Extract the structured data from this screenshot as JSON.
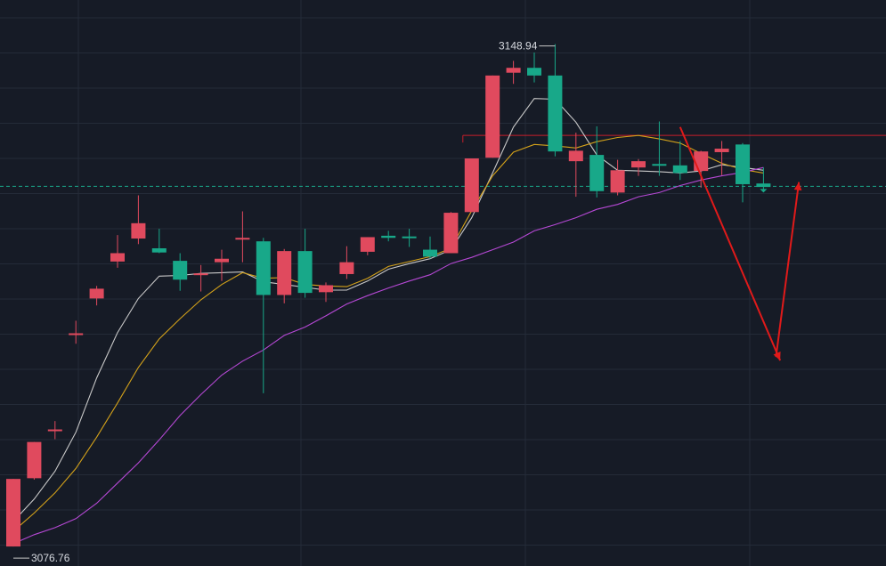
{
  "chart_data": {
    "type": "candlestick",
    "y_axis": {
      "scale": "linear",
      "range_note": "price",
      "gridlines": true
    },
    "x_axis": {
      "gridlines": true
    },
    "annotations": {
      "high_label": "3148.94",
      "low_label": "3076.76"
    },
    "candles": [
      {
        "open": 3086.5,
        "close": 3076.8,
        "high": 3086.5,
        "low": 3076.8,
        "color": "red"
      },
      {
        "open": 3091.8,
        "close": 3086.6,
        "high": 3091.8,
        "low": 3086.4,
        "color": "red"
      },
      {
        "open": 3093.5,
        "close": 3093.6,
        "high": 3094.8,
        "low": 3092.2,
        "color": "red"
      },
      {
        "open": 3107.4,
        "close": 3107.3,
        "high": 3109.2,
        "low": 3105.9,
        "color": "red"
      },
      {
        "open": 3113.8,
        "close": 3112.4,
        "high": 3114.2,
        "low": 3111.4,
        "color": "red"
      },
      {
        "open": 3118.9,
        "close": 3117.7,
        "high": 3121.5,
        "low": 3116.8,
        "color": "red"
      },
      {
        "open": 3123.2,
        "close": 3121.0,
        "high": 3127.2,
        "low": 3120.2,
        "color": "red"
      },
      {
        "open": 3119.6,
        "close": 3119.0,
        "high": 3122.4,
        "low": 3118.9,
        "color": "green"
      },
      {
        "open": 3117.8,
        "close": 3115.1,
        "high": 3118.9,
        "low": 3113.5,
        "color": "green"
      },
      {
        "open": 3115.8,
        "close": 3116.0,
        "high": 3117.2,
        "low": 3113.4,
        "color": "red"
      },
      {
        "open": 3118.1,
        "close": 3117.6,
        "high": 3119.4,
        "low": 3114.9,
        "color": "red"
      },
      {
        "open": 3121.1,
        "close": 3121.0,
        "high": 3124.9,
        "low": 3117.6,
        "color": "red"
      },
      {
        "open": 3120.6,
        "close": 3112.9,
        "high": 3121.1,
        "low": 3098.8,
        "color": "green"
      },
      {
        "open": 3119.2,
        "close": 3112.9,
        "high": 3119.5,
        "low": 3111.7,
        "color": "red"
      },
      {
        "open": 3119.2,
        "close": 3113.2,
        "high": 3122.4,
        "low": 3112.5,
        "color": "green"
      },
      {
        "open": 3114.3,
        "close": 3113.3,
        "high": 3114.7,
        "low": 3111.9,
        "color": "red"
      },
      {
        "open": 3117.6,
        "close": 3115.9,
        "high": 3119.9,
        "low": 3115.2,
        "color": "red"
      },
      {
        "open": 3121.2,
        "close": 3119.1,
        "high": 3121.2,
        "low": 3118.6,
        "color": "red"
      },
      {
        "open": 3121.4,
        "close": 3121.1,
        "high": 3122.1,
        "low": 3120.6,
        "color": "green"
      },
      {
        "open": 3121.3,
        "close": 3121.1,
        "high": 3122.4,
        "low": 3119.8,
        "color": "green"
      },
      {
        "open": 3119.4,
        "close": 3118.4,
        "high": 3121.3,
        "low": 3118.1,
        "color": "green"
      },
      {
        "open": 3124.7,
        "close": 3118.9,
        "high": 3124.8,
        "low": 3118.9,
        "color": "red"
      },
      {
        "open": 3132.5,
        "close": 3124.8,
        "high": 3132.5,
        "low": 3124.8,
        "color": "red"
      },
      {
        "open": 3144.4,
        "close": 3132.6,
        "high": 3144.4,
        "low": 3132.6,
        "color": "red"
      },
      {
        "open": 3145.5,
        "close": 3144.8,
        "high": 3146.5,
        "low": 3143.2,
        "color": "red"
      },
      {
        "open": 3145.5,
        "close": 3144.4,
        "high": 3147.7,
        "low": 3143.4,
        "color": "green"
      },
      {
        "open": 3144.4,
        "close": 3133.5,
        "high": 3148.9,
        "low": 3132.8,
        "color": "green"
      },
      {
        "open": 3133.6,
        "close": 3132.1,
        "high": 3136.2,
        "low": 3127.0,
        "color": "red"
      },
      {
        "open": 3133.0,
        "close": 3127.8,
        "high": 3137.1,
        "low": 3126.9,
        "color": "green"
      },
      {
        "open": 3130.8,
        "close": 3127.6,
        "high": 3132.3,
        "low": 3127.2,
        "color": "red"
      },
      {
        "open": 3132.1,
        "close": 3131.2,
        "high": 3132.4,
        "low": 3130.0,
        "color": "red"
      },
      {
        "open": 3131.7,
        "close": 3131.6,
        "high": 3137.8,
        "low": 3130.0,
        "color": "green"
      },
      {
        "open": 3131.5,
        "close": 3130.4,
        "high": 3135.0,
        "low": 3129.4,
        "color": "green"
      },
      {
        "open": 3130.7,
        "close": 3133.5,
        "high": 3133.6,
        "low": 3128.3,
        "color": "red"
      },
      {
        "open": 3133.9,
        "close": 3133.4,
        "high": 3135.0,
        "low": 3130.1,
        "color": "red"
      },
      {
        "open": 3134.5,
        "close": 3128.8,
        "high": 3134.7,
        "low": 3126.2,
        "color": "green"
      },
      {
        "open": 3128.9,
        "close": 3128.4,
        "high": 3131.2,
        "low": 3127.7,
        "color": "green"
      }
    ],
    "moving_averages": [
      {
        "name": "",
        "color": "#c9c9c9",
        "values": [
          3080.4,
          3083.6,
          3087.6,
          3093.2,
          3101.0,
          3107.5,
          3112.4,
          3115.6,
          3115.7,
          3116.0,
          3116.1,
          3116.2,
          3114.8,
          3114.4,
          3114.0,
          3113.6,
          3113.6,
          3114.9,
          3116.6,
          3117.4,
          3118.1,
          3119.4,
          3124.0,
          3130.4,
          3137.0,
          3141.1,
          3141.0,
          3137.7,
          3133.0,
          3130.8,
          3130.7,
          3130.6,
          3130.4,
          3130.7,
          3131.6,
          3131.2,
          3130.8
        ]
      },
      {
        "name": "",
        "color": "#d4a21a",
        "values": [
          3079.0,
          3081.6,
          3084.5,
          3088.0,
          3092.5,
          3097.4,
          3102.5,
          3106.6,
          3109.5,
          3112.2,
          3114.4,
          3116.1,
          3115.3,
          3115.4,
          3114.4,
          3114.2,
          3114.1,
          3115.3,
          3117.0,
          3117.7,
          3118.4,
          3119.6,
          3125.0,
          3130.0,
          3133.4,
          3134.5,
          3134.3,
          3134.0,
          3134.9,
          3135.5,
          3135.8,
          3135.3,
          3134.7,
          3133.2,
          3131.8,
          3130.9,
          3130.4
        ]
      },
      {
        "name": "",
        "color": "#b548d4",
        "values": [
          3077.2,
          3078.5,
          3079.5,
          3080.8,
          3083.0,
          3085.9,
          3088.8,
          3092.1,
          3095.6,
          3098.6,
          3101.4,
          3103.4,
          3105.0,
          3107.1,
          3108.3,
          3109.9,
          3111.6,
          3112.8,
          3113.9,
          3114.9,
          3115.8,
          3117.4,
          3118.3,
          3119.4,
          3120.5,
          3122.1,
          3123.0,
          3124.0,
          3125.2,
          3125.9,
          3127.0,
          3127.6,
          3128.6,
          3129.4,
          3130.0,
          3130.5,
          3131.2
        ]
      }
    ],
    "horizontal_lines": [
      {
        "price": 3135.8,
        "style": "solid",
        "color": "#c81e2a",
        "from_index": 22
      },
      {
        "price": 3128.5,
        "style": "dashed",
        "color": "#1aa88a"
      }
    ],
    "projection_arrows": [
      {
        "color": "#e01a1a",
        "from": [
          32.0,
          3137.0
        ],
        "to": [
          36.8,
          3103.5
        ]
      },
      {
        "color": "#e01a1a",
        "from": [
          36.6,
          3104.0
        ],
        "to": [
          37.7,
          3129.1
        ]
      }
    ],
    "colors": {
      "up": "#e04a5e",
      "down": "#18a889",
      "background": "#161b26",
      "grid": "#242b38"
    }
  }
}
